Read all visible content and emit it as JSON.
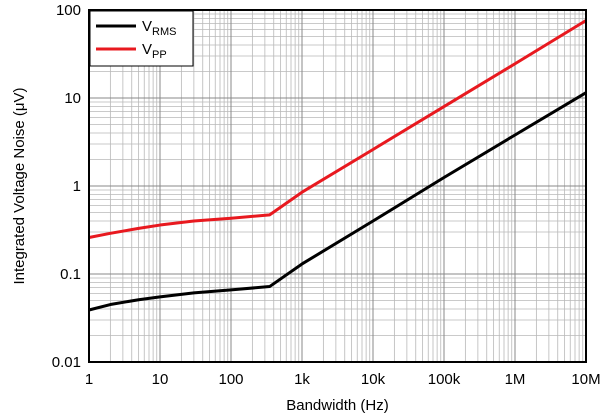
{
  "chart_data": {
    "type": "line",
    "xlabel": "Bandwidth (Hz)",
    "ylabel": "Integrated Voltage Noise (μV)",
    "x_scale": "log",
    "y_scale": "log",
    "xlim": [
      1,
      10000000
    ],
    "ylim": [
      0.01,
      100
    ],
    "grid": true,
    "legend_position": "top-left",
    "x_tick_labels": [
      "1",
      "10",
      "100",
      "1k",
      "10k",
      "100k",
      "1M",
      "10M"
    ],
    "y_tick_labels": [
      "0.01",
      "0.1",
      "1",
      "10",
      "100"
    ],
    "series": [
      {
        "name_main": "V",
        "name_sub": "RMS",
        "color": "#000000",
        "x": [
          1,
          2,
          5,
          10,
          30,
          100,
          350,
          1000,
          10000,
          100000,
          1000000,
          10000000
        ],
        "y": [
          0.039,
          0.045,
          0.051,
          0.055,
          0.061,
          0.066,
          0.072,
          0.13,
          0.4,
          1.25,
          3.8,
          11.5
        ]
      },
      {
        "name_main": "V",
        "name_sub": "PP",
        "color": "#e8191f",
        "x": [
          1,
          2,
          5,
          10,
          30,
          100,
          350,
          1000,
          10000,
          100000,
          1000000,
          10000000
        ],
        "y": [
          0.26,
          0.29,
          0.33,
          0.36,
          0.4,
          0.43,
          0.47,
          0.85,
          2.6,
          8.0,
          24.5,
          76.0
        ]
      }
    ]
  }
}
